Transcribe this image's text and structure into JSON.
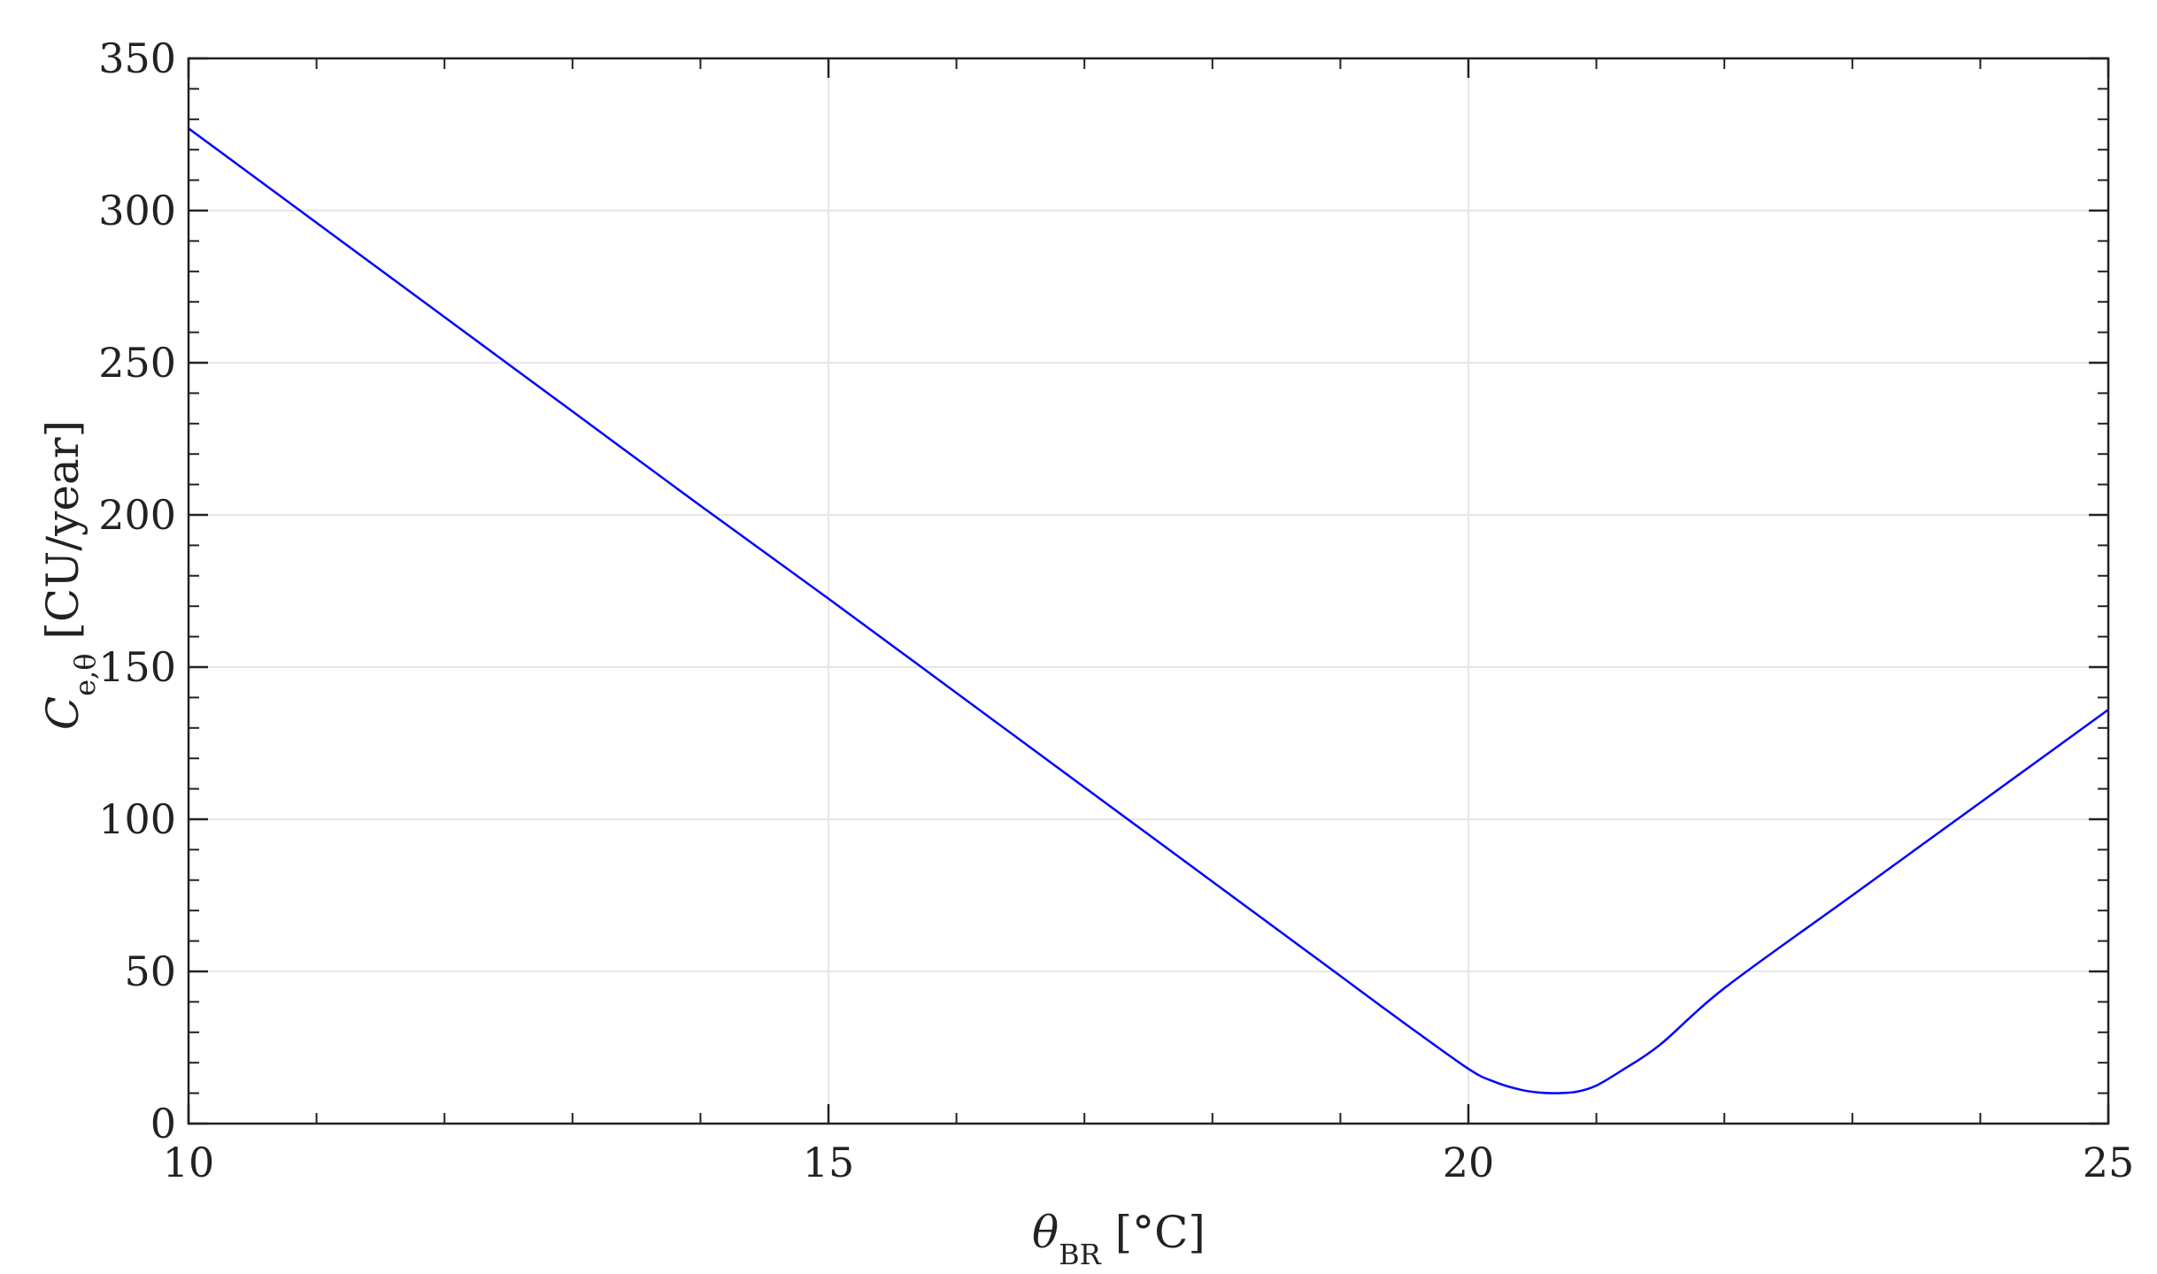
{
  "chart_data": {
    "type": "line",
    "xlabel": {
      "symbol": "θ",
      "sub": "BR",
      "unit": " [°C]"
    },
    "ylabel": {
      "symbol": "C",
      "sub": "e,θ",
      "unit": " [CU/year]"
    },
    "xlim": [
      10,
      25
    ],
    "ylim": [
      0,
      350
    ],
    "x_ticks": [
      10,
      15,
      20,
      25
    ],
    "y_ticks": [
      0,
      50,
      100,
      150,
      200,
      250,
      300,
      350
    ],
    "x_tick_labels": [
      "10",
      "15",
      "20",
      "25"
    ],
    "y_tick_labels": [
      "0",
      "50",
      "100",
      "150",
      "200",
      "250",
      "300",
      "350"
    ],
    "grid": true,
    "series": [
      {
        "color": "#0000ff",
        "x": [
          10,
          11,
          12,
          13,
          14,
          15,
          16,
          17,
          18,
          19,
          19.5,
          20,
          20.2,
          20.4,
          20.55,
          20.7,
          20.85,
          21,
          21.2,
          21.5,
          22,
          23,
          24,
          25
        ],
        "y": [
          327,
          296,
          265,
          234,
          203,
          172.5,
          141.5,
          110.5,
          79.5,
          48.5,
          33,
          18,
          13.8,
          11.2,
          10.2,
          10,
          10.5,
          12.5,
          17.5,
          26,
          44.5,
          75,
          105.5,
          136
        ]
      }
    ]
  },
  "colors": {
    "line": "#0000ff",
    "axis": "#222222",
    "grid": "#e6e6e6"
  }
}
